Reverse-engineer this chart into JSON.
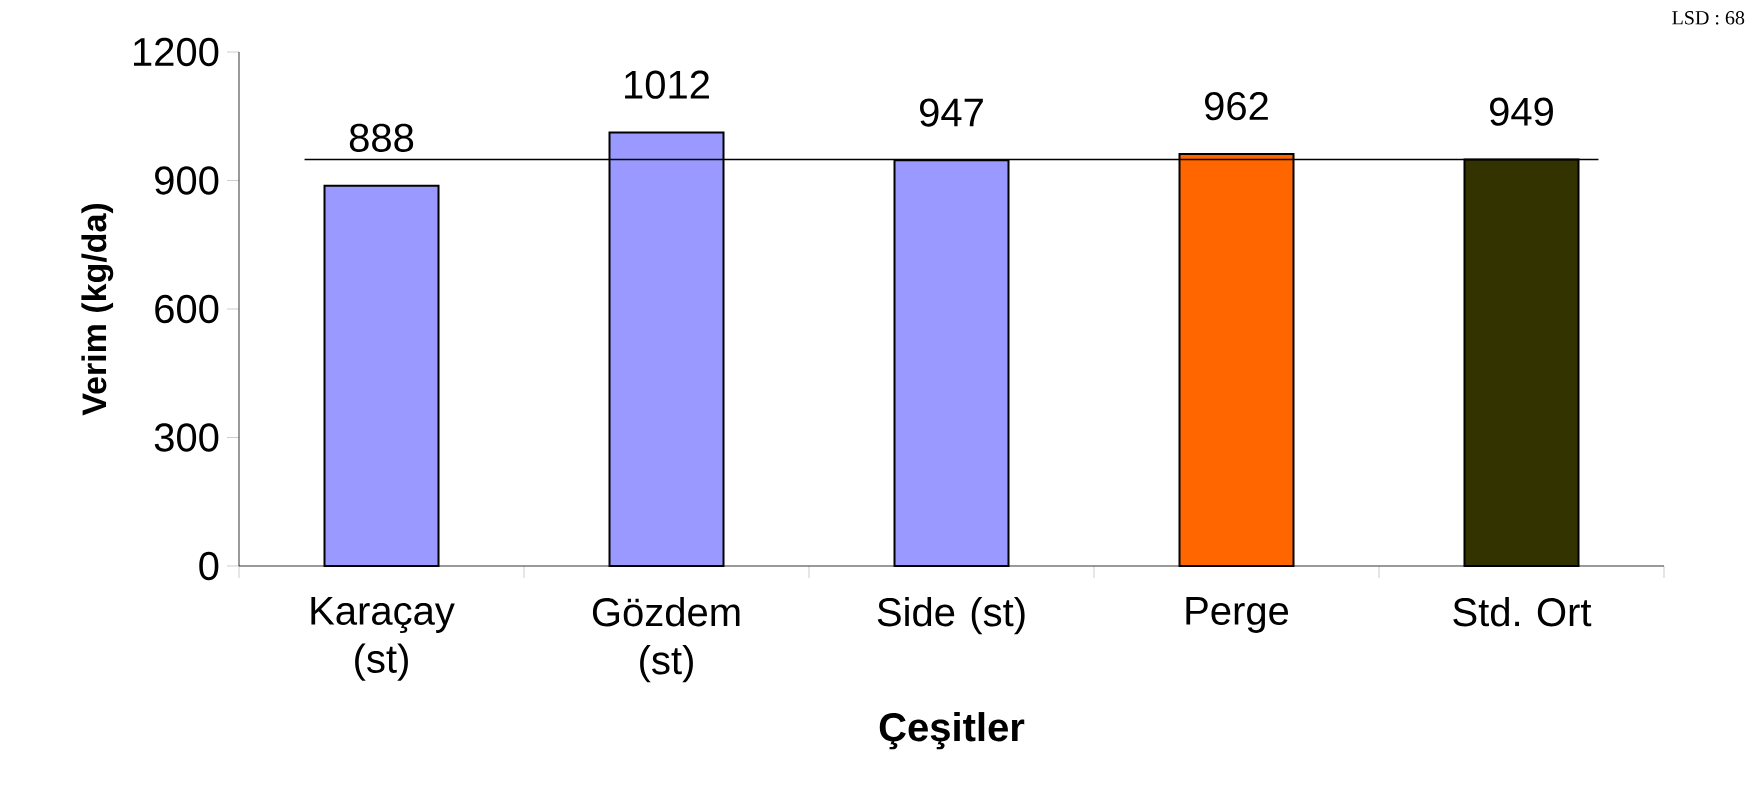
{
  "chart_data": {
    "type": "bar",
    "xlabel": "Çeşitler",
    "ylabel": "Verim (kg/da)",
    "categories": [
      "Karaçay (st)",
      "Gözdem (st)",
      "Side (st)",
      "Perge",
      "Std. Ort"
    ],
    "values": [
      888,
      1012,
      947,
      962,
      949
    ],
    "colors": [
      "#9999ff",
      "#9999ff",
      "#9999ff",
      "#ff6600",
      "#333300"
    ],
    "ylim": [
      0,
      1200
    ],
    "yticks": [
      0,
      300,
      600,
      900,
      1200
    ],
    "data_labels": true,
    "ref_lines": [
      {
        "axis": "y",
        "value": 949,
        "color": "#000000"
      }
    ],
    "annotations": [
      "LSD : 68"
    ]
  }
}
